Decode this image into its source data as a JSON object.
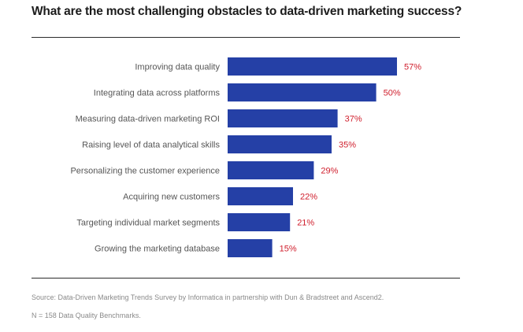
{
  "title": "What are the most challenging obstacles to data-driven marketing success?",
  "footnotes": {
    "source": "Source: Data-Driven Marketing Trends Survey by Informatica in partnership with Dun & Bradstreet and Ascend2.",
    "sample": "N = 158 Data Quality Benchmarks."
  },
  "colors": {
    "bar": "#2540a6",
    "value_label": "#d0202e",
    "category_label": "#555555"
  },
  "chart_data": {
    "type": "bar",
    "orientation": "horizontal",
    "title": "What are the most challenging obstacles to data-driven marketing success?",
    "categories": [
      "Improving data quality",
      "Integrating data across platforms",
      "Measuring data-driven marketing ROI",
      "Raising level of data analytical skills",
      "Personalizing the customer experience",
      "Acquiring new customers",
      "Targeting individual market segments",
      "Growing the marketing database"
    ],
    "values": [
      57,
      50,
      37,
      35,
      29,
      22,
      21,
      15
    ],
    "value_labels": [
      "57%",
      "50%",
      "37%",
      "35%",
      "29%",
      "22%",
      "21%",
      "15%"
    ],
    "unit": "%",
    "xlim": [
      0,
      57
    ],
    "grid": false,
    "legend": "none"
  }
}
